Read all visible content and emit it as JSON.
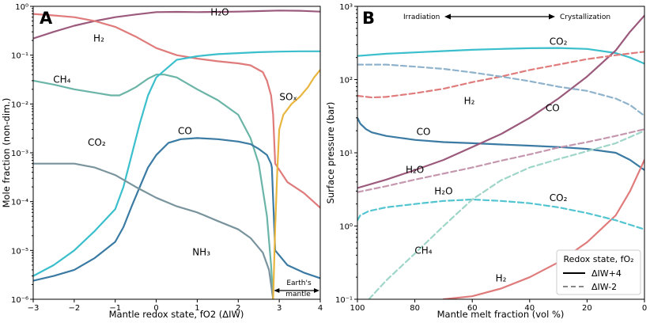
{
  "chart_data": [
    {
      "type": "line",
      "panel_label": "A",
      "title": "",
      "xlabel": "Mantle redox state, fO2 (ΔIW)",
      "ylabel": "Mole fraction (non-dim.)",
      "xlim": [
        -3,
        4
      ],
      "ylim": [
        1e-06,
        1
      ],
      "yscale": "log",
      "x_ticks": [
        -3,
        -2,
        -1,
        0,
        1,
        2,
        3,
        4
      ],
      "y_ticks": [
        {
          "v": 1e-06,
          "label": "10⁻⁶"
        },
        {
          "v": 1e-05,
          "label": "10⁻⁵"
        },
        {
          "v": 0.0001,
          "label": "10⁻⁴"
        },
        {
          "v": 0.001,
          "label": "10⁻³"
        },
        {
          "v": 0.01,
          "label": "10⁻²"
        },
        {
          "v": 0.1,
          "label": "10⁻¹"
        },
        {
          "v": 1,
          "label": "10⁰"
        }
      ],
      "annotation": {
        "text_line1": "Earth's",
        "text_line2": "mantle",
        "x_from": 2.85,
        "x_to": 4
      },
      "series": [
        {
          "name": "H₂O",
          "color": "#9b5a7c",
          "label_at": [
            1.55,
            0.65
          ],
          "x": [
            -3,
            -2.5,
            -2,
            -1.5,
            -1,
            -0.5,
            0,
            0.5,
            1,
            1.5,
            2,
            2.5,
            3,
            3.5,
            4
          ],
          "y": [
            0.22,
            0.3,
            0.4,
            0.5,
            0.6,
            0.68,
            0.76,
            0.77,
            0.76,
            0.77,
            0.78,
            0.8,
            0.82,
            0.81,
            0.78
          ]
        },
        {
          "name": "H₂",
          "color": "#e07b7b",
          "label_at": [
            -1.4,
            0.19
          ],
          "x": [
            -3,
            -2.5,
            -2,
            -1.5,
            -1,
            -0.5,
            0,
            0.5,
            1,
            1.5,
            2,
            2.3,
            2.6,
            2.7,
            2.8,
            2.85,
            2.9,
            3.2,
            3.6,
            4
          ],
          "y": [
            0.7,
            0.65,
            0.6,
            0.5,
            0.38,
            0.24,
            0.14,
            0.1,
            0.085,
            0.075,
            0.068,
            0.062,
            0.045,
            0.03,
            0.015,
            0.006,
            0.0006,
            0.00025,
            0.00015,
            7.5e-05
          ]
        },
        {
          "name": "CH₄",
          "color": "#6bb5a8",
          "label_at": [
            -2.3,
            0.027
          ],
          "x": [
            -3,
            -2.5,
            -2,
            -1.5,
            -1.1,
            -0.9,
            -0.7,
            -0.5,
            -0.2,
            0,
            0.2,
            0.5,
            1,
            1.5,
            2,
            2.3,
            2.5,
            2.7,
            2.8,
            2.85
          ],
          "y": [
            0.03,
            0.025,
            0.02,
            0.017,
            0.015,
            0.015,
            0.018,
            0.022,
            0.033,
            0.04,
            0.04,
            0.035,
            0.02,
            0.012,
            0.006,
            0.002,
            0.0006,
            5e-05,
            5e-06,
            1e-06
          ]
        },
        {
          "name": "CO₂",
          "color": "#3bbfcc",
          "label_at": [
            -1.45,
            0.0014
          ],
          "x": [
            -3,
            -2.5,
            -2,
            -1.5,
            -1,
            -0.8,
            -0.6,
            -0.4,
            -0.2,
            0,
            0.5,
            1,
            1.5,
            2,
            2.5,
            3,
            3.5,
            4
          ],
          "y": [
            3e-06,
            5e-06,
            1e-05,
            2.5e-05,
            7e-05,
            0.0002,
            0.0009,
            0.004,
            0.015,
            0.035,
            0.08,
            0.095,
            0.105,
            0.11,
            0.115,
            0.118,
            0.12,
            0.12
          ]
        },
        {
          "name": "CO",
          "color": "#3a7aa3",
          "label_at": [
            0.7,
            0.0024
          ],
          "x": [
            -3,
            -2.5,
            -2,
            -1.5,
            -1,
            -0.8,
            -0.6,
            -0.4,
            -0.2,
            0,
            0.3,
            0.6,
            1,
            1.5,
            2,
            2.3,
            2.5,
            2.7,
            2.8,
            2.82,
            2.9,
            3.2,
            3.6,
            4
          ],
          "y": [
            2.4e-06,
            3e-06,
            4e-06,
            7e-06,
            1.5e-05,
            3e-05,
            8e-05,
            0.0002,
            0.0005,
            0.0009,
            0.0016,
            0.0019,
            0.002,
            0.0019,
            0.0017,
            0.0015,
            0.0012,
            0.0009,
            0.0006,
            0.0005,
            1e-05,
            5e-06,
            3.5e-06,
            2.7e-06
          ]
        },
        {
          "name": "NH₃",
          "color": "#7a949e",
          "label_at": [
            1.1,
            8e-06
          ],
          "x": [
            -3,
            -2.5,
            -2,
            -1.5,
            -1,
            -0.5,
            0,
            0.5,
            1,
            1.5,
            2,
            2.3,
            2.6,
            2.75,
            2.8,
            2.85
          ],
          "y": [
            0.0006,
            0.0006,
            0.0006,
            0.0005,
            0.00035,
            0.0002,
            0.00012,
            8e-05,
            6e-05,
            4e-05,
            2.7e-05,
            1.8e-05,
            9e-06,
            4e-06,
            2e-06,
            1e-06
          ]
        },
        {
          "name": "SOₓ",
          "color": "#e8b63f",
          "label_at": [
            3.22,
            0.012
          ],
          "x": [
            2.85,
            2.9,
            2.95,
            3.0,
            3.1,
            3.3,
            3.5,
            3.7,
            3.85,
            4
          ],
          "y": [
            1e-06,
            3e-05,
            0.0004,
            0.003,
            0.006,
            0.01,
            0.014,
            0.022,
            0.035,
            0.05
          ]
        }
      ]
    },
    {
      "type": "line",
      "panel_label": "B",
      "title": "",
      "xlabel": "Mantle melt fraction (vol %)",
      "ylabel": "Surface pressure (bar)",
      "xlim": [
        100,
        0
      ],
      "ylim": [
        0.1,
        1000
      ],
      "yscale": "log",
      "x_ticks": [
        100,
        80,
        60,
        40,
        20,
        0
      ],
      "y_ticks": [
        {
          "v": 0.1,
          "label": "10⁻¹"
        },
        {
          "v": 1,
          "label": "10⁰"
        },
        {
          "v": 10,
          "label": "10¹"
        },
        {
          "v": 100,
          "label": "10²"
        },
        {
          "v": 1000,
          "label": "10³"
        }
      ],
      "annotation": {
        "left": "Irradiation",
        "right": "Crystallization"
      },
      "legend": {
        "title": "Redox state, fO₂",
        "entries": [
          "ΔIW+4",
          "ΔIW-2"
        ],
        "placement": "bottom-right"
      },
      "series": [
        {
          "name": "CO₂",
          "redox": "+4",
          "color": "#3bbfcc",
          "dashed": false,
          "label_at": [
            30,
            300
          ],
          "x": [
            100,
            90,
            80,
            70,
            60,
            50,
            40,
            30,
            20,
            10,
            5,
            0
          ],
          "y": [
            210,
            225,
            235,
            245,
            255,
            262,
            268,
            270,
            262,
            230,
            200,
            165
          ]
        },
        {
          "name": "CO",
          "redox": "+4",
          "color": "#3a7aa3",
          "dashed": false,
          "label_at": [
            77,
            17.5
          ],
          "x": [
            100,
            99,
            97,
            95,
            90,
            80,
            70,
            60,
            50,
            40,
            30,
            20,
            10,
            5,
            0
          ],
          "y": [
            30,
            25,
            21,
            19,
            17,
            15,
            14,
            13.5,
            13,
            12.5,
            12,
            11.3,
            10,
            8,
            5.8
          ]
        },
        {
          "name": "H₂O",
          "redox": "+4",
          "color": "#9b5a7c",
          "dashed": false,
          "label_at": [
            80,
            5.3
          ],
          "x": [
            100,
            90,
            80,
            70,
            60,
            50,
            40,
            30,
            20,
            10,
            5,
            0
          ],
          "y": [
            3.3,
            4.3,
            5.8,
            8,
            12,
            18,
            30,
            55,
            110,
            250,
            450,
            750
          ]
        },
        {
          "name": "H₂",
          "redox": "+4",
          "color": "#e07b7b",
          "dashed": false,
          "label_at": [
            50,
            0.175
          ],
          "x": [
            70,
            60,
            50,
            40,
            30,
            20,
            10,
            5,
            0
          ],
          "y": [
            0.1,
            0.11,
            0.14,
            0.2,
            0.32,
            0.6,
            1.4,
            3,
            8
          ]
        },
        {
          "name": "H₂",
          "redox": "-2",
          "color": "#e07b7b",
          "dashed": true,
          "label_at": [
            61,
            46
          ],
          "x": [
            100,
            95,
            90,
            80,
            70,
            60,
            50,
            40,
            30,
            20,
            10,
            0
          ],
          "y": [
            60,
            57,
            58,
            65,
            75,
            92,
            110,
            135,
            160,
            190,
            215,
            240
          ]
        },
        {
          "name": "CO",
          "redox": "-2",
          "color": "#8fb3cc",
          "dashed": true,
          "label_at": [
            32,
            37
          ],
          "x": [
            100,
            90,
            80,
            70,
            60,
            50,
            40,
            30,
            20,
            10,
            5,
            0
          ],
          "y": [
            160,
            160,
            150,
            140,
            125,
            110,
            95,
            80,
            70,
            55,
            45,
            32
          ]
        },
        {
          "name": "H₂O",
          "redox": "-2",
          "color": "#c597ae",
          "dashed": true,
          "label_at": [
            70,
            2.7
          ],
          "x": [
            100,
            90,
            80,
            70,
            60,
            50,
            40,
            30,
            20,
            10,
            0
          ],
          "y": [
            2.9,
            3.5,
            4.3,
            5.2,
            6.3,
            7.8,
            9.5,
            11.8,
            14,
            17,
            21
          ]
        },
        {
          "name": "CO₂",
          "redox": "-2",
          "color": "#52c5d1",
          "dashed": true,
          "label_at": [
            30,
            2.2
          ],
          "x": [
            100,
            99,
            96,
            90,
            80,
            70,
            60,
            50,
            40,
            30,
            20,
            10,
            0
          ],
          "y": [
            1.2,
            1.4,
            1.6,
            1.8,
            2,
            2.2,
            2.3,
            2.2,
            2.05,
            1.8,
            1.5,
            1.2,
            0.9
          ]
        },
        {
          "name": "CH₄",
          "redox": "-2",
          "color": "#9fd6c9",
          "dashed": true,
          "label_at": [
            77,
            0.42
          ],
          "x": [
            96,
            90,
            80,
            70,
            60,
            50,
            40,
            30,
            20,
            10,
            0
          ],
          "y": [
            0.1,
            0.18,
            0.42,
            1,
            2.3,
            4.2,
            6.3,
            8.2,
            10.5,
            13.5,
            20
          ]
        }
      ]
    }
  ]
}
